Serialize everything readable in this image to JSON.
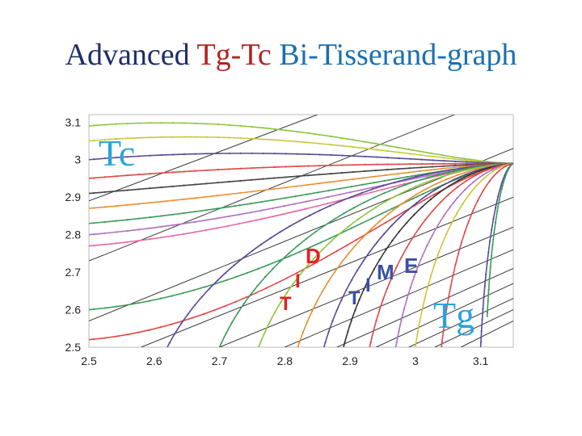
{
  "title": {
    "part1": "Advanced ",
    "part2": "Tg-Tc",
    "part3": " Bi-Tisserand-graph"
  },
  "colors": {
    "title_part1": "#1f2d6b",
    "title_part2": "#b22222",
    "title_part3": "#1a6fb0",
    "tc": "#29a3dd",
    "tg": "#29a3dd",
    "red_letters": "#e8201c",
    "blue_letters": "#3a4fa8"
  },
  "chart_data": {
    "type": "line",
    "title": "",
    "xlabel": "Tg",
    "ylabel": "Tc",
    "xlim": [
      2.5,
      3.15
    ],
    "ylim": [
      2.5,
      3.12
    ],
    "xticks": [
      "2.5",
      "2.6",
      "2.7",
      "2.8",
      "2.9",
      "3",
      "3.1"
    ],
    "yticks": [
      "2.5",
      "2.6",
      "2.7",
      "2.8",
      "2.9",
      "3",
      "3.1"
    ],
    "annotations": {
      "tc_label": "Tc",
      "tg_label": "Tg",
      "dit": [
        "D",
        "I",
        "T"
      ],
      "time": [
        "T",
        "I",
        "M",
        "E"
      ]
    },
    "convergence_point": [
      3.15,
      2.99
    ],
    "series": [
      {
        "kind": "contour",
        "color": "#8cc63f",
        "start": [
          2.5,
          3.09
        ]
      },
      {
        "kind": "contour",
        "color": "#c8c83a",
        "start": [
          2.5,
          3.05
        ]
      },
      {
        "kind": "contour",
        "color": "#5a4a9a",
        "start": [
          2.5,
          3.0
        ]
      },
      {
        "kind": "contour",
        "color": "#e04848",
        "start": [
          2.5,
          2.95
        ]
      },
      {
        "kind": "contour",
        "color": "#444444",
        "start": [
          2.5,
          2.91
        ]
      },
      {
        "kind": "contour",
        "color": "#e89030",
        "start": [
          2.5,
          2.87
        ]
      },
      {
        "kind": "contour",
        "color": "#3a9a5a",
        "start": [
          2.5,
          2.83
        ]
      },
      {
        "kind": "contour",
        "color": "#b070c0",
        "start": [
          2.5,
          2.8
        ]
      },
      {
        "kind": "contour",
        "color": "#e868a8",
        "start": [
          2.5,
          2.77
        ]
      },
      {
        "kind": "contour",
        "color": "#3a9a5a",
        "start": [
          2.5,
          2.6
        ]
      },
      {
        "kind": "contour",
        "color": "#e04848",
        "start": [
          2.5,
          2.52
        ]
      },
      {
        "kind": "contour",
        "color": "#5a4a9a",
        "start": [
          2.62,
          2.5
        ]
      },
      {
        "kind": "contour",
        "color": "#3a9a5a",
        "start": [
          2.7,
          2.5
        ]
      },
      {
        "kind": "contour",
        "color": "#8cc63f",
        "start": [
          2.76,
          2.5
        ]
      },
      {
        "kind": "contour",
        "color": "#e89030",
        "start": [
          2.82,
          2.5
        ]
      },
      {
        "kind": "contour",
        "color": "#5a4a9a",
        "start": [
          2.86,
          2.5
        ]
      },
      {
        "kind": "contour",
        "color": "#333333",
        "start": [
          2.89,
          2.5
        ]
      },
      {
        "kind": "contour",
        "color": "#e04848",
        "start": [
          2.93,
          2.5
        ]
      },
      {
        "kind": "contour",
        "color": "#b070c0",
        "start": [
          2.97,
          2.5
        ]
      },
      {
        "kind": "contour",
        "color": "#c8c83a",
        "start": [
          3.0,
          2.5
        ]
      },
      {
        "kind": "contour",
        "color": "#e04848",
        "start": [
          3.04,
          2.5
        ]
      },
      {
        "kind": "contour",
        "color": "#5a4a9a",
        "start": [
          3.1,
          2.5
        ]
      },
      {
        "kind": "contour",
        "color": "#3a9a5a",
        "start": [
          3.11,
          2.58
        ]
      }
    ],
    "diagonals": [
      {
        "x1": 2.5,
        "y1": 2.89,
        "x2": 2.85,
        "y2": 3.12
      },
      {
        "x1": 2.5,
        "y1": 2.73,
        "x2": 3.06,
        "y2": 3.12
      },
      {
        "x1": 2.5,
        "y1": 2.57,
        "x2": 3.15,
        "y2": 3.03
      },
      {
        "x1": 2.58,
        "y1": 2.5,
        "x2": 3.15,
        "y2": 2.9
      },
      {
        "x1": 2.7,
        "y1": 2.5,
        "x2": 3.15,
        "y2": 2.82
      },
      {
        "x1": 2.8,
        "y1": 2.5,
        "x2": 3.15,
        "y2": 2.76
      },
      {
        "x1": 2.88,
        "y1": 2.5,
        "x2": 3.15,
        "y2": 2.71
      },
      {
        "x1": 2.94,
        "y1": 2.5,
        "x2": 3.15,
        "y2": 2.67
      },
      {
        "x1": 2.99,
        "y1": 2.5,
        "x2": 3.15,
        "y2": 2.63
      },
      {
        "x1": 3.03,
        "y1": 2.5,
        "x2": 3.15,
        "y2": 2.6
      },
      {
        "x1": 3.07,
        "y1": 2.5,
        "x2": 3.15,
        "y2": 2.57
      }
    ]
  }
}
